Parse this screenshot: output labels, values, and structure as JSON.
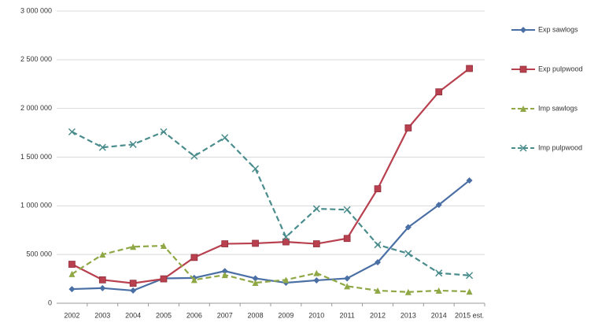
{
  "chart_data": {
    "type": "line",
    "categories": [
      "2002",
      "2003",
      "2004",
      "2005",
      "2006",
      "2007",
      "2008",
      "2009",
      "2010",
      "2011",
      "2012",
      "2013",
      "2014",
      "2015 est."
    ],
    "series": [
      {
        "name": "Exp sawlogs",
        "color": "#4a6fa5",
        "marker": "diamond",
        "dash": false,
        "values": [
          145000,
          155000,
          130000,
          255000,
          260000,
          330000,
          255000,
          210000,
          235000,
          255000,
          420000,
          780000,
          1010000,
          1260000
        ]
      },
      {
        "name": "Exp pulpwood",
        "color": "#b8404f",
        "marker": "square",
        "dash": false,
        "values": [
          400000,
          240000,
          205000,
          250000,
          470000,
          610000,
          615000,
          630000,
          610000,
          665000,
          1175000,
          1800000,
          2170000,
          2410000
        ]
      },
      {
        "name": "Imp sawlogs",
        "color": "#8fa845",
        "marker": "triangle",
        "dash": true,
        "values": [
          300000,
          500000,
          580000,
          590000,
          240000,
          290000,
          210000,
          240000,
          310000,
          175000,
          130000,
          115000,
          130000,
          120000
        ]
      },
      {
        "name": "Imp pulpwood",
        "color": "#4a8c8c",
        "marker": "x",
        "dash": true,
        "values": [
          1760000,
          1600000,
          1630000,
          1760000,
          1510000,
          1700000,
          1380000,
          680000,
          970000,
          960000,
          600000,
          510000,
          310000,
          285000
        ]
      }
    ],
    "ylim": [
      0,
      3000000
    ],
    "yticks": [
      {
        "value": 0,
        "label": "0"
      },
      {
        "value": 500000,
        "label": "500 000"
      },
      {
        "value": 1000000,
        "label": "1 000 000"
      },
      {
        "value": 1500000,
        "label": "1 500 000"
      },
      {
        "value": 2000000,
        "label": "2 000 000"
      },
      {
        "value": 2500000,
        "label": "2 500 000"
      },
      {
        "value": 3000000,
        "label": "3 000 000"
      }
    ],
    "grid": true,
    "legend": "right"
  }
}
